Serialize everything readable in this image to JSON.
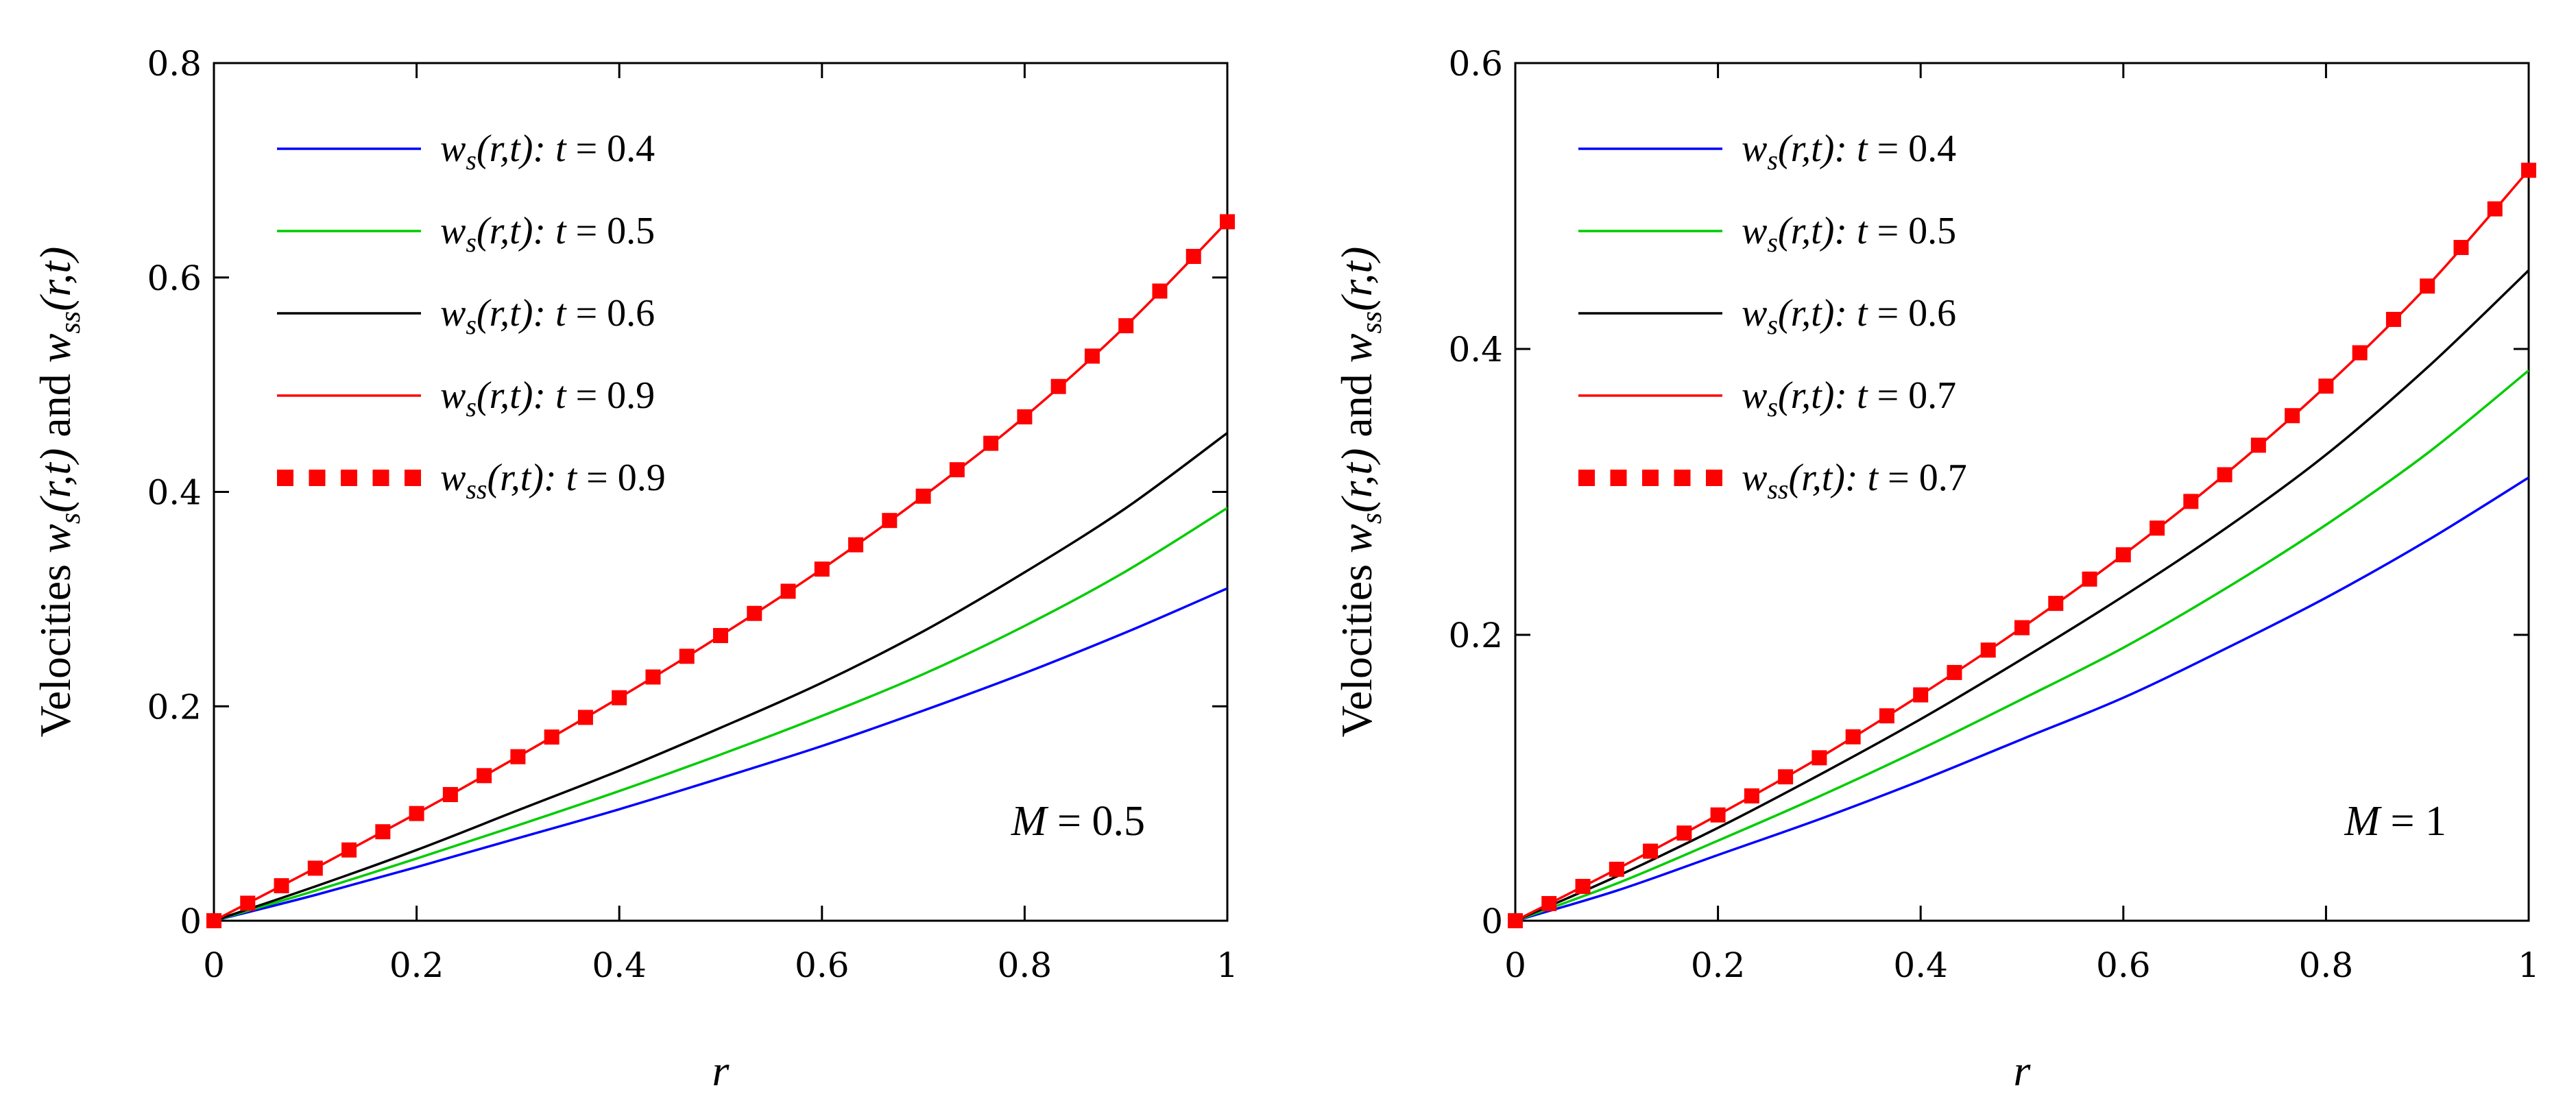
{
  "chart_data": [
    {
      "type": "line",
      "xlabel": "r",
      "ylabel": "Velocities w_s(r,t) and w_ss(r,t)",
      "ylabel_parts": {
        "prefix": "Velocities ",
        "w": "w",
        "s_sub": "s",
        "ss_sub": "ss",
        "args": "(r,t)",
        "and": " and "
      },
      "xlim": [
        0,
        1
      ],
      "ylim": [
        0,
        0.8
      ],
      "xticks": [
        "0",
        "0.2",
        "0.4",
        "0.6",
        "0.8",
        "1"
      ],
      "yticks": [
        "0",
        "0.2",
        "0.4",
        "0.6",
        "0.8"
      ],
      "annotation": {
        "var": "M",
        "eq": " = 0.5"
      },
      "x": [
        0,
        0.1,
        0.2,
        0.3,
        0.4,
        0.5,
        0.6,
        0.7,
        0.8,
        0.9,
        1.0
      ],
      "series": [
        {
          "name": "w_s(r,t): t = 0.4",
          "legend": {
            "w": "w",
            "sub": "s",
            "args": "(r,t): ",
            "t": "t",
            "eq": " = 0.4"
          },
          "color": "#0000ff",
          "style": "line",
          "values": [
            0,
            0.024,
            0.05,
            0.077,
            0.104,
            0.133,
            0.163,
            0.196,
            0.231,
            0.269,
            0.31
          ]
        },
        {
          "name": "w_s(r,t): t = 0.5",
          "legend": {
            "w": "w",
            "sub": "s",
            "args": "(r,t): ",
            "t": "t",
            "eq": " = 0.5"
          },
          "color": "#00cc00",
          "style": "line",
          "values": [
            0,
            0.028,
            0.058,
            0.089,
            0.121,
            0.155,
            0.191,
            0.23,
            0.275,
            0.326,
            0.385
          ]
        },
        {
          "name": "w_s(r,t): t = 0.6",
          "legend": {
            "w": "w",
            "sub": "s",
            "args": "(r,t): ",
            "t": "t",
            "eq": " = 0.6"
          },
          "color": "#000000",
          "style": "line",
          "values": [
            0,
            0.032,
            0.066,
            0.103,
            0.14,
            0.18,
            0.222,
            0.27,
            0.325,
            0.385,
            0.455
          ]
        },
        {
          "name": "w_s(r,t): t = 0.9",
          "legend": {
            "w": "w",
            "sub": "s",
            "args": "(r,t): ",
            "t": "t",
            "eq": " = 0.9"
          },
          "color": "#ff0000",
          "style": "line",
          "values": [
            0,
            0.049,
            0.1,
            0.153,
            0.208,
            0.266,
            0.328,
            0.396,
            0.47,
            0.555,
            0.652
          ]
        },
        {
          "name": "w_ss(r,t): t = 0.9",
          "legend": {
            "w": "w",
            "sub": "ss",
            "args": "(r,t): ",
            "t": "t",
            "eq": " = 0.9"
          },
          "color": "#ff0000",
          "style": "markers",
          "values": [
            0,
            0.049,
            0.1,
            0.153,
            0.208,
            0.266,
            0.328,
            0.396,
            0.47,
            0.555,
            0.652
          ]
        }
      ]
    },
    {
      "type": "line",
      "xlabel": "r",
      "ylabel": "Velocities w_s(r,t) and w_ss(r,t)",
      "ylabel_parts": {
        "prefix": "Velocities ",
        "w": "w",
        "s_sub": "s",
        "ss_sub": "ss",
        "args": "(r,t)",
        "and": " and "
      },
      "xlim": [
        0,
        1
      ],
      "ylim": [
        0,
        0.6
      ],
      "xticks": [
        "0",
        "0.2",
        "0.4",
        "0.6",
        "0.8",
        "1"
      ],
      "yticks": [
        "0",
        "0.2",
        "0.4",
        "0.6"
      ],
      "annotation": {
        "var": "M",
        "eq": " = 1"
      },
      "x": [
        0,
        0.1,
        0.2,
        0.3,
        0.4,
        0.5,
        0.6,
        0.7,
        0.8,
        0.9,
        1.0
      ],
      "series": [
        {
          "name": "w_s(r,t): t = 0.4",
          "legend": {
            "w": "w",
            "sub": "s",
            "args": "(r,t): ",
            "t": "t",
            "eq": " = 0.4"
          },
          "color": "#0000ff",
          "style": "line",
          "values": [
            0,
            0.021,
            0.046,
            0.071,
            0.098,
            0.127,
            0.156,
            0.19,
            0.226,
            0.266,
            0.31
          ]
        },
        {
          "name": "w_s(r,t): t = 0.5",
          "legend": {
            "w": "w",
            "sub": "s",
            "args": "(r,t): ",
            "t": "t",
            "eq": " = 0.5"
          },
          "color": "#00cc00",
          "style": "line",
          "values": [
            0,
            0.026,
            0.056,
            0.087,
            0.12,
            0.155,
            0.191,
            0.232,
            0.277,
            0.327,
            0.385
          ]
        },
        {
          "name": "w_s(r,t): t = 0.6",
          "legend": {
            "w": "w",
            "sub": "s",
            "args": "(r,t): ",
            "t": "t",
            "eq": " = 0.6"
          },
          "color": "#000000",
          "style": "line",
          "values": [
            0,
            0.031,
            0.065,
            0.102,
            0.141,
            0.183,
            0.227,
            0.274,
            0.326,
            0.387,
            0.455
          ]
        },
        {
          "name": "w_s(r,t): t = 0.7",
          "legend": {
            "w": "w",
            "sub": "s",
            "args": "(r,t): ",
            "t": "t",
            "eq": " = 0.7"
          },
          "color": "#ff0000",
          "style": "line",
          "values": [
            0,
            0.036,
            0.074,
            0.114,
            0.158,
            0.205,
            0.256,
            0.312,
            0.374,
            0.444,
            0.525
          ]
        },
        {
          "name": "w_ss(r,t): t = 0.7",
          "legend": {
            "w": "w",
            "sub": "ss",
            "args": "(r,t): ",
            "t": "t",
            "eq": " = 0.7"
          },
          "color": "#ff0000",
          "style": "markers",
          "values": [
            0,
            0.036,
            0.074,
            0.114,
            0.158,
            0.205,
            0.256,
            0.312,
            0.374,
            0.444,
            0.525
          ]
        }
      ]
    }
  ]
}
